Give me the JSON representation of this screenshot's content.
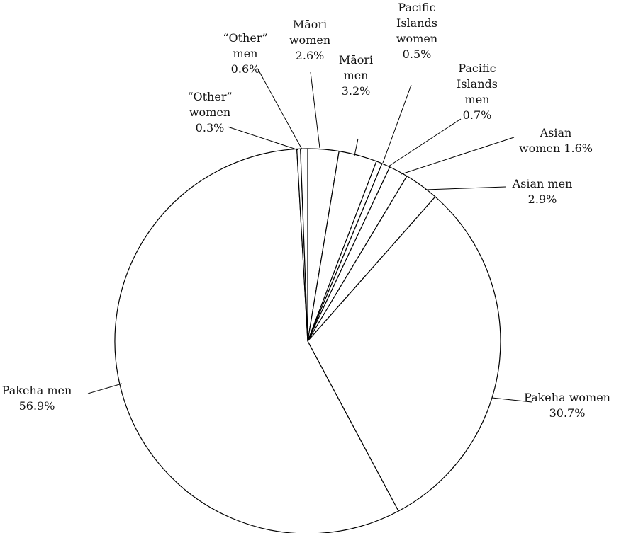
{
  "chart_data": {
    "type": "pie",
    "title": "",
    "start": "top",
    "direction": "clockwise",
    "slices": [
      {
        "label_lines": [
          "Māori",
          "women",
          "2.6%"
        ],
        "value": 2.6
      },
      {
        "label_lines": [
          "Māori",
          "men",
          "3.2%"
        ],
        "value": 3.2
      },
      {
        "label_lines": [
          "Pacific",
          "Islands",
          "women",
          "0.5%"
        ],
        "value": 0.5
      },
      {
        "label_lines": [
          "Pacific",
          "Islands",
          "men",
          "0.7%"
        ],
        "value": 0.7
      },
      {
        "label_lines": [
          "Asian",
          "women 1.6%"
        ],
        "value": 1.6
      },
      {
        "label_lines": [
          "Asian men",
          "2.9%"
        ],
        "value": 2.9
      },
      {
        "label_lines": [
          "Pakeha women",
          "30.7%"
        ],
        "value": 30.7
      },
      {
        "label_lines": [
          "Pakeha men",
          "56.9%"
        ],
        "value": 56.9
      },
      {
        "label_lines": [
          "“Other”",
          "women",
          "0.3%"
        ],
        "value": 0.3
      },
      {
        "label_lines": [
          "“Other”",
          "men",
          "0.6%"
        ],
        "value": 0.6
      }
    ]
  }
}
